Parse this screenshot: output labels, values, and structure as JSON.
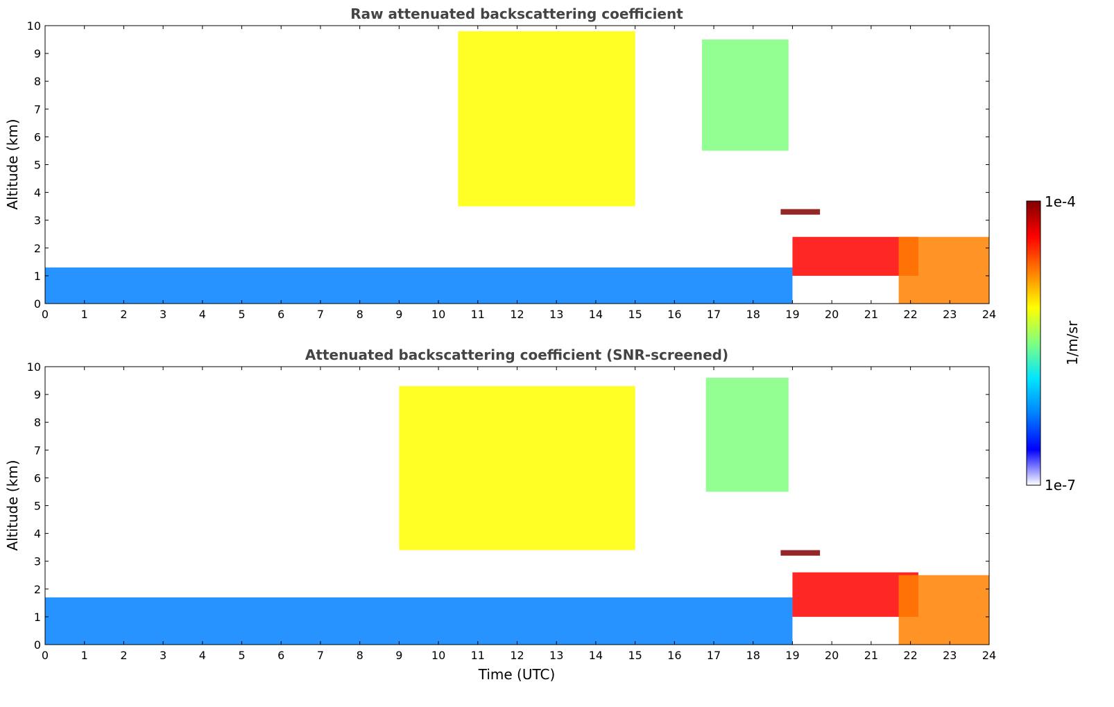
{
  "chart_data": [
    {
      "type": "heatmap",
      "title": "Raw attenuated backscattering coefficient",
      "xlabel": "",
      "ylabel": "Altitude (km)",
      "xlim": [
        0,
        24
      ],
      "ylim": [
        0,
        10
      ],
      "x_ticks": [
        0,
        1,
        2,
        3,
        4,
        5,
        6,
        7,
        8,
        9,
        10,
        11,
        12,
        13,
        14,
        15,
        16,
        17,
        18,
        19,
        20,
        21,
        22,
        23,
        24
      ],
      "y_ticks": [
        0,
        1,
        2,
        3,
        4,
        5,
        6,
        7,
        8,
        9,
        10
      ],
      "colorscale": "jet (log)",
      "features": [
        {
          "t_start": 0,
          "t_end": 19,
          "alt_bottom": 0,
          "alt_top": 1.3,
          "level": 0.25
        },
        {
          "t_start": 10.5,
          "t_end": 15,
          "alt_bottom": 3.5,
          "alt_top": 9.8,
          "level": 0.65
        },
        {
          "t_start": 16.7,
          "t_end": 18.9,
          "alt_bottom": 5.5,
          "alt_top": 9.5,
          "level": 0.55
        },
        {
          "t_start": 18.7,
          "t_end": 19.7,
          "alt_bottom": 3.2,
          "alt_top": 3.4,
          "level": 0.95
        },
        {
          "t_start": 19,
          "t_end": 22.2,
          "alt_bottom": 1.0,
          "alt_top": 2.4,
          "level": 0.85
        },
        {
          "t_start": 21.7,
          "t_end": 24,
          "alt_bottom": 0,
          "alt_top": 2.4,
          "level": 0.75
        }
      ]
    },
    {
      "type": "heatmap",
      "title": "Attenuated backscattering coefficient (SNR-screened)",
      "xlabel": "Time (UTC)",
      "ylabel": "Altitude (km)",
      "xlim": [
        0,
        24
      ],
      "ylim": [
        0,
        10
      ],
      "x_ticks": [
        0,
        1,
        2,
        3,
        4,
        5,
        6,
        7,
        8,
        9,
        10,
        11,
        12,
        13,
        14,
        15,
        16,
        17,
        18,
        19,
        20,
        21,
        22,
        23,
        24
      ],
      "y_ticks": [
        0,
        1,
        2,
        3,
        4,
        5,
        6,
        7,
        8,
        9,
        10
      ],
      "colorscale": "jet (log)",
      "features": [
        {
          "t_start": 0,
          "t_end": 19,
          "alt_bottom": 0,
          "alt_top": 1.7,
          "level": 0.25
        },
        {
          "t_start": 9,
          "t_end": 15,
          "alt_bottom": 3.4,
          "alt_top": 9.3,
          "level": 0.65
        },
        {
          "t_start": 16.8,
          "t_end": 18.9,
          "alt_bottom": 5.5,
          "alt_top": 9.6,
          "level": 0.55
        },
        {
          "t_start": 18.7,
          "t_end": 19.7,
          "alt_bottom": 3.2,
          "alt_top": 3.4,
          "level": 0.95
        },
        {
          "t_start": 19,
          "t_end": 22.2,
          "alt_bottom": 1.0,
          "alt_top": 2.6,
          "level": 0.85
        },
        {
          "t_start": 21.7,
          "t_end": 24,
          "alt_bottom": 0,
          "alt_top": 2.5,
          "level": 0.75
        }
      ]
    }
  ],
  "colorbar": {
    "label": "1/m/sr",
    "max_label": "1e-4",
    "min_label": "1e-7",
    "colors": [
      "#ffffff",
      "#0000ff",
      "#0080ff",
      "#00e5ff",
      "#80ff80",
      "#ffff00",
      "#ff8000",
      "#ff0000",
      "#800000"
    ]
  }
}
